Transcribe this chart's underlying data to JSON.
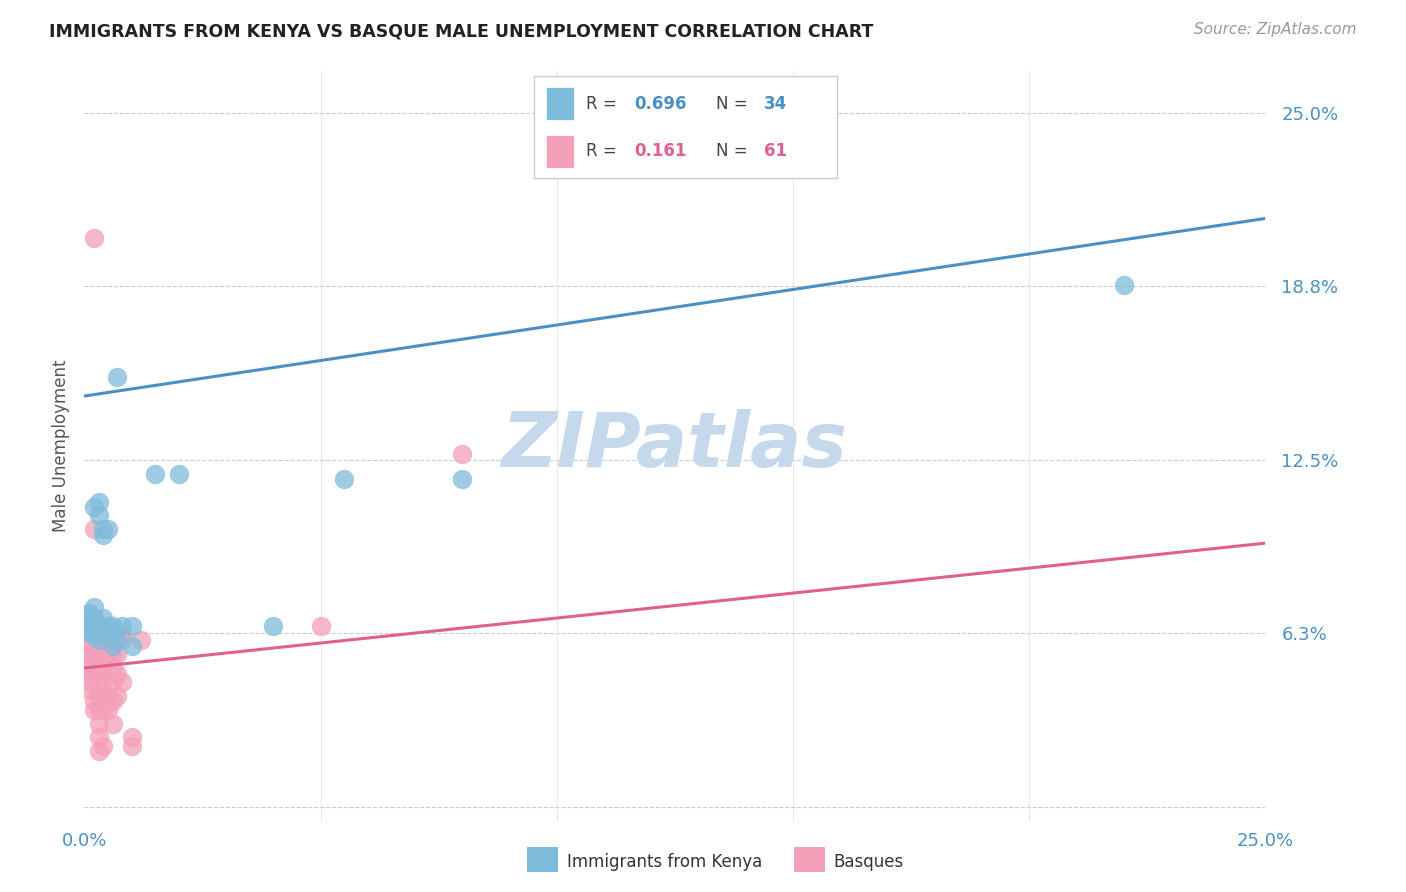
{
  "title": "IMMIGRANTS FROM KENYA VS BASQUE MALE UNEMPLOYMENT CORRELATION CHART",
  "source": "Source: ZipAtlas.com",
  "ylabel": "Male Unemployment",
  "xmin": 0.0,
  "xmax": 0.25,
  "ymin": -0.005,
  "ymax": 0.265,
  "ytick_vals": [
    0.0,
    0.0625,
    0.125,
    0.1875,
    0.25
  ],
  "ytick_labels": [
    "",
    "6.3%",
    "12.5%",
    "18.8%",
    "25.0%"
  ],
  "xtick_vals": [
    0.0,
    0.05,
    0.1,
    0.15,
    0.2,
    0.25
  ],
  "xtick_labels_show": [
    "0.0%",
    "",
    "",
    "",
    "",
    "25.0%"
  ],
  "blue_color": "#7fbcdb",
  "pink_color": "#f4a0b8",
  "blue_line_color": "#4a90c4",
  "pink_line_color": "#e06090",
  "blue_line_x": [
    0.0,
    0.25
  ],
  "blue_line_y": [
    0.148,
    0.212
  ],
  "pink_line_x": [
    0.0,
    0.25
  ],
  "pink_line_y": [
    0.05,
    0.095
  ],
  "watermark": "ZIPatlas",
  "watermark_color": "#c5d8ec",
  "background_color": "#ffffff",
  "grid_color": "#cccccc",
  "tick_color": "#4a90c4",
  "label_color": "#555555",
  "title_color": "#222222",
  "source_color": "#999999",
  "legend_r_color": "#444444",
  "legend_blue_val_color": "#4a90c4",
  "legend_pink_val_color": "#e06090",
  "blue_scatter": [
    [
      0.0005,
      0.065
    ],
    [
      0.0008,
      0.068
    ],
    [
      0.001,
      0.063
    ],
    [
      0.001,
      0.07
    ],
    [
      0.0015,
      0.065
    ],
    [
      0.002,
      0.072
    ],
    [
      0.002,
      0.068
    ],
    [
      0.002,
      0.062
    ],
    [
      0.002,
      0.108
    ],
    [
      0.003,
      0.105
    ],
    [
      0.003,
      0.065
    ],
    [
      0.003,
      0.06
    ],
    [
      0.003,
      0.11
    ],
    [
      0.004,
      0.063
    ],
    [
      0.004,
      0.068
    ],
    [
      0.004,
      0.098
    ],
    [
      0.004,
      0.1
    ],
    [
      0.005,
      0.062
    ],
    [
      0.005,
      0.065
    ],
    [
      0.005,
      0.1
    ],
    [
      0.006,
      0.063
    ],
    [
      0.006,
      0.065
    ],
    [
      0.006,
      0.058
    ],
    [
      0.007,
      0.06
    ],
    [
      0.007,
      0.155
    ],
    [
      0.008,
      0.065
    ],
    [
      0.01,
      0.065
    ],
    [
      0.01,
      0.058
    ],
    [
      0.015,
      0.12
    ],
    [
      0.02,
      0.12
    ],
    [
      0.04,
      0.065
    ],
    [
      0.055,
      0.118
    ],
    [
      0.08,
      0.118
    ],
    [
      0.22,
      0.188
    ]
  ],
  "pink_scatter": [
    [
      0.0003,
      0.063
    ],
    [
      0.0005,
      0.06
    ],
    [
      0.0005,
      0.058
    ],
    [
      0.0007,
      0.055
    ],
    [
      0.001,
      0.065
    ],
    [
      0.001,
      0.058
    ],
    [
      0.001,
      0.055
    ],
    [
      0.001,
      0.05
    ],
    [
      0.001,
      0.048
    ],
    [
      0.001,
      0.045
    ],
    [
      0.001,
      0.042
    ],
    [
      0.001,
      0.07
    ],
    [
      0.0015,
      0.06
    ],
    [
      0.0015,
      0.055
    ],
    [
      0.0015,
      0.052
    ],
    [
      0.002,
      0.06
    ],
    [
      0.002,
      0.055
    ],
    [
      0.002,
      0.048
    ],
    [
      0.002,
      0.068
    ],
    [
      0.002,
      0.1
    ],
    [
      0.002,
      0.038
    ],
    [
      0.002,
      0.035
    ],
    [
      0.003,
      0.06
    ],
    [
      0.003,
      0.058
    ],
    [
      0.003,
      0.055
    ],
    [
      0.003,
      0.05
    ],
    [
      0.003,
      0.045
    ],
    [
      0.003,
      0.04
    ],
    [
      0.003,
      0.035
    ],
    [
      0.003,
      0.03
    ],
    [
      0.003,
      0.025
    ],
    [
      0.003,
      0.02
    ],
    [
      0.004,
      0.058
    ],
    [
      0.004,
      0.055
    ],
    [
      0.004,
      0.05
    ],
    [
      0.004,
      0.045
    ],
    [
      0.004,
      0.04
    ],
    [
      0.004,
      0.035
    ],
    [
      0.004,
      0.022
    ],
    [
      0.005,
      0.06
    ],
    [
      0.005,
      0.055
    ],
    [
      0.005,
      0.04
    ],
    [
      0.005,
      0.035
    ],
    [
      0.006,
      0.06
    ],
    [
      0.006,
      0.055
    ],
    [
      0.006,
      0.05
    ],
    [
      0.006,
      0.045
    ],
    [
      0.006,
      0.038
    ],
    [
      0.006,
      0.03
    ],
    [
      0.007,
      0.06
    ],
    [
      0.007,
      0.055
    ],
    [
      0.007,
      0.048
    ],
    [
      0.007,
      0.04
    ],
    [
      0.008,
      0.06
    ],
    [
      0.008,
      0.045
    ],
    [
      0.008,
      0.062
    ],
    [
      0.01,
      0.025
    ],
    [
      0.01,
      0.022
    ],
    [
      0.012,
      0.06
    ],
    [
      0.05,
      0.065
    ],
    [
      0.08,
      0.127
    ],
    [
      0.002,
      0.205
    ]
  ]
}
